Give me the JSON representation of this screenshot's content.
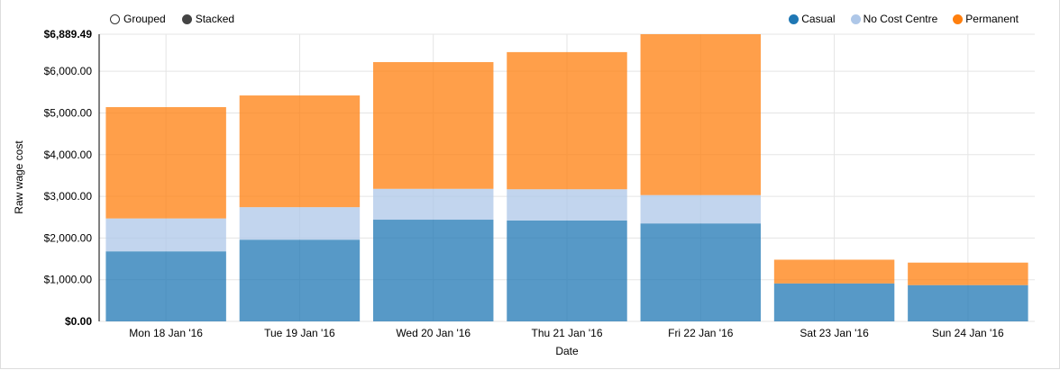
{
  "controls": {
    "grouped_label": "Grouped",
    "stacked_label": "Stacked",
    "selected": "stacked"
  },
  "legend": [
    {
      "name": "Casual",
      "color": "#1f77b4"
    },
    {
      "name": "No Cost Centre",
      "color": "#aec7e8"
    },
    {
      "name": "Permanent",
      "color": "#ff7f0e"
    }
  ],
  "chart_data": {
    "type": "bar",
    "stacked": true,
    "title": "",
    "xlabel": "Date",
    "ylabel": "Raw wage cost",
    "ylim": [
      0,
      6889.49
    ],
    "y_ticks": [
      0,
      1000,
      2000,
      3000,
      4000,
      5000,
      6000,
      6889.49
    ],
    "y_tick_labels": [
      "$0.00",
      "$1,000.00",
      "$2,000.00",
      "$3,000.00",
      "$4,000.00",
      "$5,000.00",
      "$6,000.00",
      "$6,889.49"
    ],
    "grid": true,
    "legend_position": "top-right",
    "categories": [
      "Mon 18 Jan '16",
      "Tue 19 Jan '16",
      "Wed 20 Jan '16",
      "Thu 21 Jan '16",
      "Fri 22 Jan '16",
      "Sat 23 Jan '16",
      "Sun 24 Jan '16"
    ],
    "series": [
      {
        "name": "Casual",
        "color": "#1f77b4",
        "values": [
          1680,
          1960,
          2440,
          2420,
          2350,
          910,
          870
        ]
      },
      {
        "name": "No Cost Centre",
        "color": "#aec7e8",
        "values": [
          790,
          780,
          740,
          750,
          680,
          0,
          0
        ]
      },
      {
        "name": "Permanent",
        "color": "#ff7f0e",
        "values": [
          2670,
          2680,
          3040,
          3290,
          3859.49,
          570,
          540
        ]
      }
    ]
  }
}
